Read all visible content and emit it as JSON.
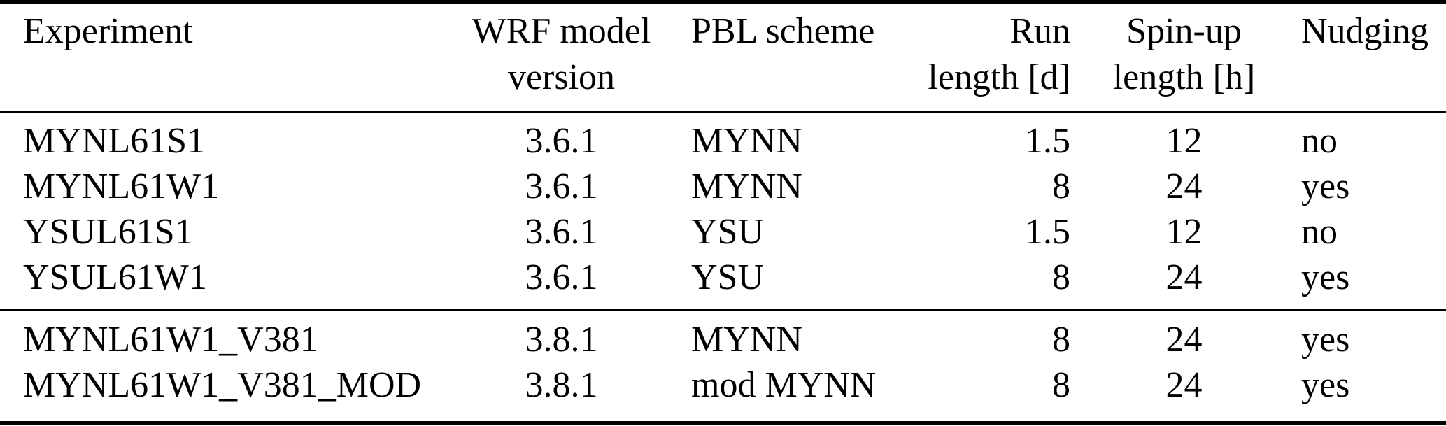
{
  "colors": {
    "background": "#ffffff",
    "text": "#000000",
    "rule": "#000000"
  },
  "table": {
    "header": {
      "experiment": "Experiment",
      "wrf_model_line1": "WRF model",
      "wrf_model_line2": "version",
      "pbl_scheme": "PBL scheme",
      "run_line1": "Run",
      "run_line2": "length [d]",
      "spinup_line1": "Spin-up",
      "spinup_line2": "length [h]",
      "nudging": "Nudging"
    },
    "groups": [
      {
        "rows": [
          {
            "experiment": "MYNL61S1",
            "wrf_version": "3.6.1",
            "pbl_scheme": "MYNN",
            "run_length_d": "1.5",
            "spinup_length_h": "12",
            "nudging": "no"
          },
          {
            "experiment": "MYNL61W1",
            "wrf_version": "3.6.1",
            "pbl_scheme": "MYNN",
            "run_length_d": "8",
            "spinup_length_h": "24",
            "nudging": "yes"
          },
          {
            "experiment": "YSUL61S1",
            "wrf_version": "3.6.1",
            "pbl_scheme": "YSU",
            "run_length_d": "1.5",
            "spinup_length_h": "12",
            "nudging": "no"
          },
          {
            "experiment": "YSUL61W1",
            "wrf_version": "3.6.1",
            "pbl_scheme": "YSU",
            "run_length_d": "8",
            "spinup_length_h": "24",
            "nudging": "yes"
          }
        ]
      },
      {
        "rows": [
          {
            "experiment": "MYNL61W1_V381",
            "wrf_version": "3.8.1",
            "pbl_scheme": "MYNN",
            "run_length_d": "8",
            "spinup_length_h": "24",
            "nudging": "yes"
          },
          {
            "experiment": "MYNL61W1_V381_MOD",
            "wrf_version": "3.8.1",
            "pbl_scheme": "mod MYNN",
            "run_length_d": "8",
            "spinup_length_h": "24",
            "nudging": "yes"
          }
        ]
      }
    ]
  }
}
